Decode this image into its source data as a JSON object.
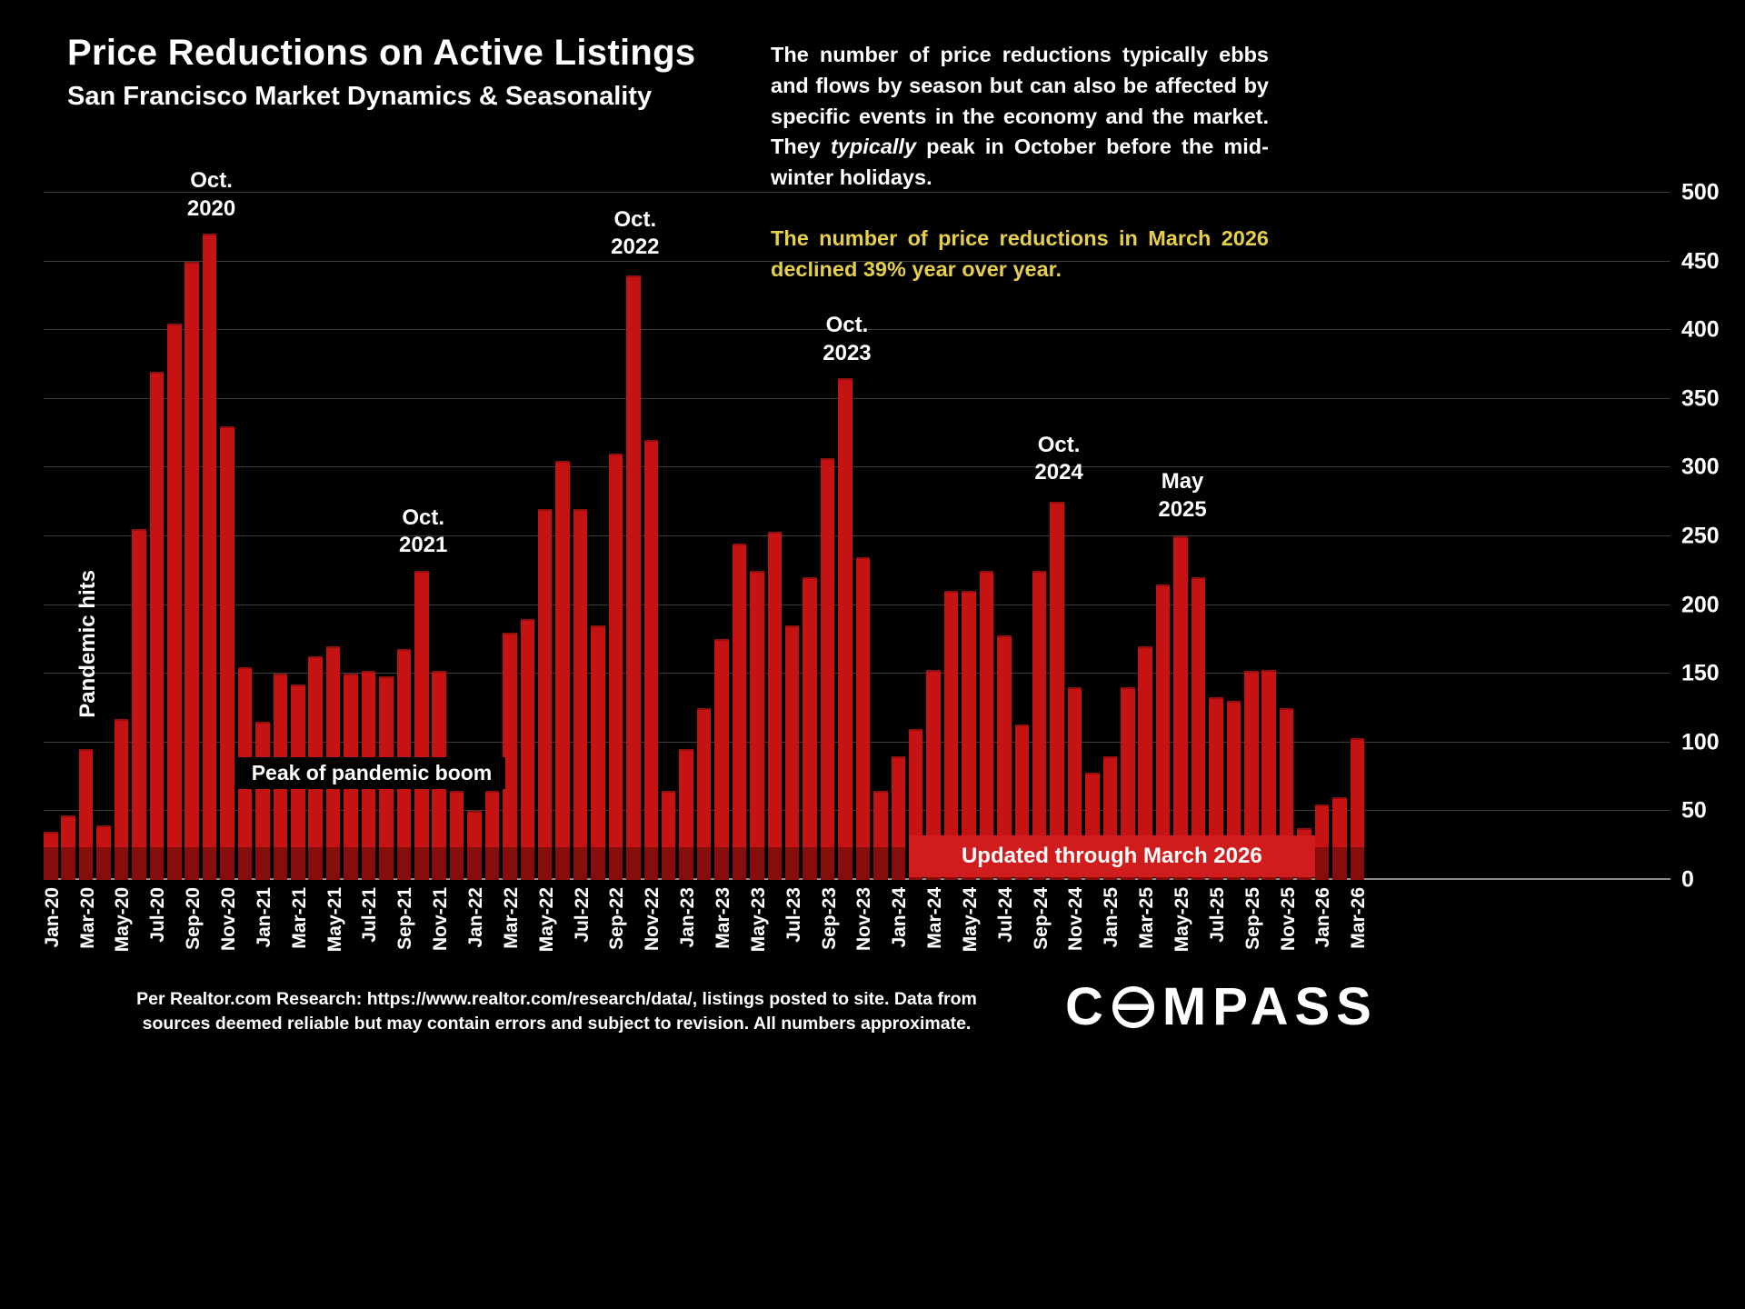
{
  "header": {
    "title": "Price Reductions on Active Listings",
    "subtitle": "San Francisco Market Dynamics & Seasonality"
  },
  "commentary": {
    "p1_before": "The number of price reductions typically ebbs and flows by season but can also be affected by specific events in the economy and the market. They ",
    "p1_italic": "typically",
    "p1_after": " peak in October before the mid-winter holidays.",
    "p2": "The number of price reductions in March 2026 declined 39% year over year.",
    "accent_color": "#e6cf4d"
  },
  "axis": {
    "yticks": [
      500,
      450,
      400,
      350,
      300,
      250,
      200,
      150,
      100,
      50,
      0
    ]
  },
  "chart_data": {
    "type": "bar",
    "title": "Price Reductions on Active Listings",
    "subtitle": "San Francisco Market Dynamics & Seasonality",
    "ylim": [
      0,
      500
    ],
    "ytick_interval": 50,
    "bar_color": "#c51313",
    "x_tick_step": 2,
    "x": [
      "Jan-20",
      "Feb-20",
      "Mar-20",
      "Apr-20",
      "May-20",
      "Jun-20",
      "Jul-20",
      "Aug-20",
      "Sep-20",
      "Oct-20",
      "Nov-20",
      "Dec-20",
      "Jan-21",
      "Feb-21",
      "Mar-21",
      "Apr-21",
      "May-21",
      "Jun-21",
      "Jul-21",
      "Aug-21",
      "Sep-21",
      "Oct-21",
      "Nov-21",
      "Dec-21",
      "Jan-22",
      "Feb-22",
      "Mar-22",
      "Apr-22",
      "May-22",
      "Jun-22",
      "Jul-22",
      "Aug-22",
      "Sep-22",
      "Oct-22",
      "Nov-22",
      "Dec-22",
      "Jan-23",
      "Feb-23",
      "Mar-23",
      "Apr-23",
      "May-23",
      "Jun-23",
      "Jul-23",
      "Aug-23",
      "Sep-23",
      "Oct-23",
      "Nov-23",
      "Dec-23",
      "Jan-24",
      "Feb-24",
      "Mar-24",
      "Apr-24",
      "May-24",
      "Jun-24",
      "Jul-24",
      "Aug-24",
      "Sep-24",
      "Oct-24",
      "Nov-24",
      "Dec-24",
      "Jan-25",
      "Feb-25",
      "Mar-25",
      "Apr-25",
      "May-25",
      "Jun-25",
      "Jul-25",
      "Aug-25",
      "Sep-25",
      "Oct-25",
      "Nov-25",
      "Dec-25",
      "Jan-26",
      "Feb-26",
      "Mar-26"
    ],
    "values": [
      35,
      47,
      95,
      40,
      117,
      255,
      370,
      405,
      450,
      470,
      330,
      155,
      115,
      150,
      142,
      163,
      170,
      150,
      152,
      148,
      168,
      225,
      152,
      65,
      50,
      65,
      180,
      190,
      270,
      305,
      270,
      185,
      310,
      440,
      320,
      65,
      95,
      125,
      175,
      245,
      225,
      253,
      185,
      220,
      307,
      365,
      235,
      65,
      90,
      110,
      153,
      210,
      210,
      225,
      178,
      113,
      225,
      275,
      140,
      78,
      90,
      140,
      170,
      215,
      250,
      220,
      133,
      130,
      152,
      153,
      125,
      38,
      55,
      60,
      103
    ],
    "annotations": [
      {
        "name": "oct-2020",
        "month": "Oct-20",
        "lines": [
          "Oct.",
          "2020"
        ],
        "bottom_value": 478
      },
      {
        "name": "oct-2021",
        "month": "Oct-21",
        "lines": [
          "Oct.",
          "2021"
        ],
        "bottom_value": 233
      },
      {
        "name": "oct-2022",
        "month": "Oct-22",
        "lines": [
          "Oct.",
          "2022"
        ],
        "bottom_value": 450
      },
      {
        "name": "oct-2023",
        "month": "Oct-23",
        "lines": [
          "Oct.",
          "2023"
        ],
        "bottom_value": 373
      },
      {
        "name": "oct-2024",
        "month": "Oct-24",
        "lines": [
          "Oct.",
          "2024"
        ],
        "bottom_value": 286
      },
      {
        "name": "may-2025",
        "month": "May-25",
        "lines": [
          "May",
          "2025"
        ],
        "bottom_value": 259
      }
    ],
    "pandemic_label": {
      "text": "Pandemic hits",
      "month": "Mar-20",
      "bottom_value": 118
    },
    "boom_label": {
      "text": "Peak of pandemic boom",
      "start_month": "Dec-20",
      "bottom_value": 66
    },
    "updated_banner": {
      "text": "Updated through March 2026",
      "start_month": "Feb-24",
      "end_month": "Dec-25",
      "bg": "#d01c1c"
    }
  },
  "footer": {
    "line1": "Per Realtor.com Research:  https://www.realtor.com/research/data/, listings posted to site. Data from",
    "line2": "sources deemed reliable but may contain errors and subject to revision. All numbers approximate."
  },
  "logo": {
    "first_letter": "C",
    "rest": "MPASS"
  }
}
